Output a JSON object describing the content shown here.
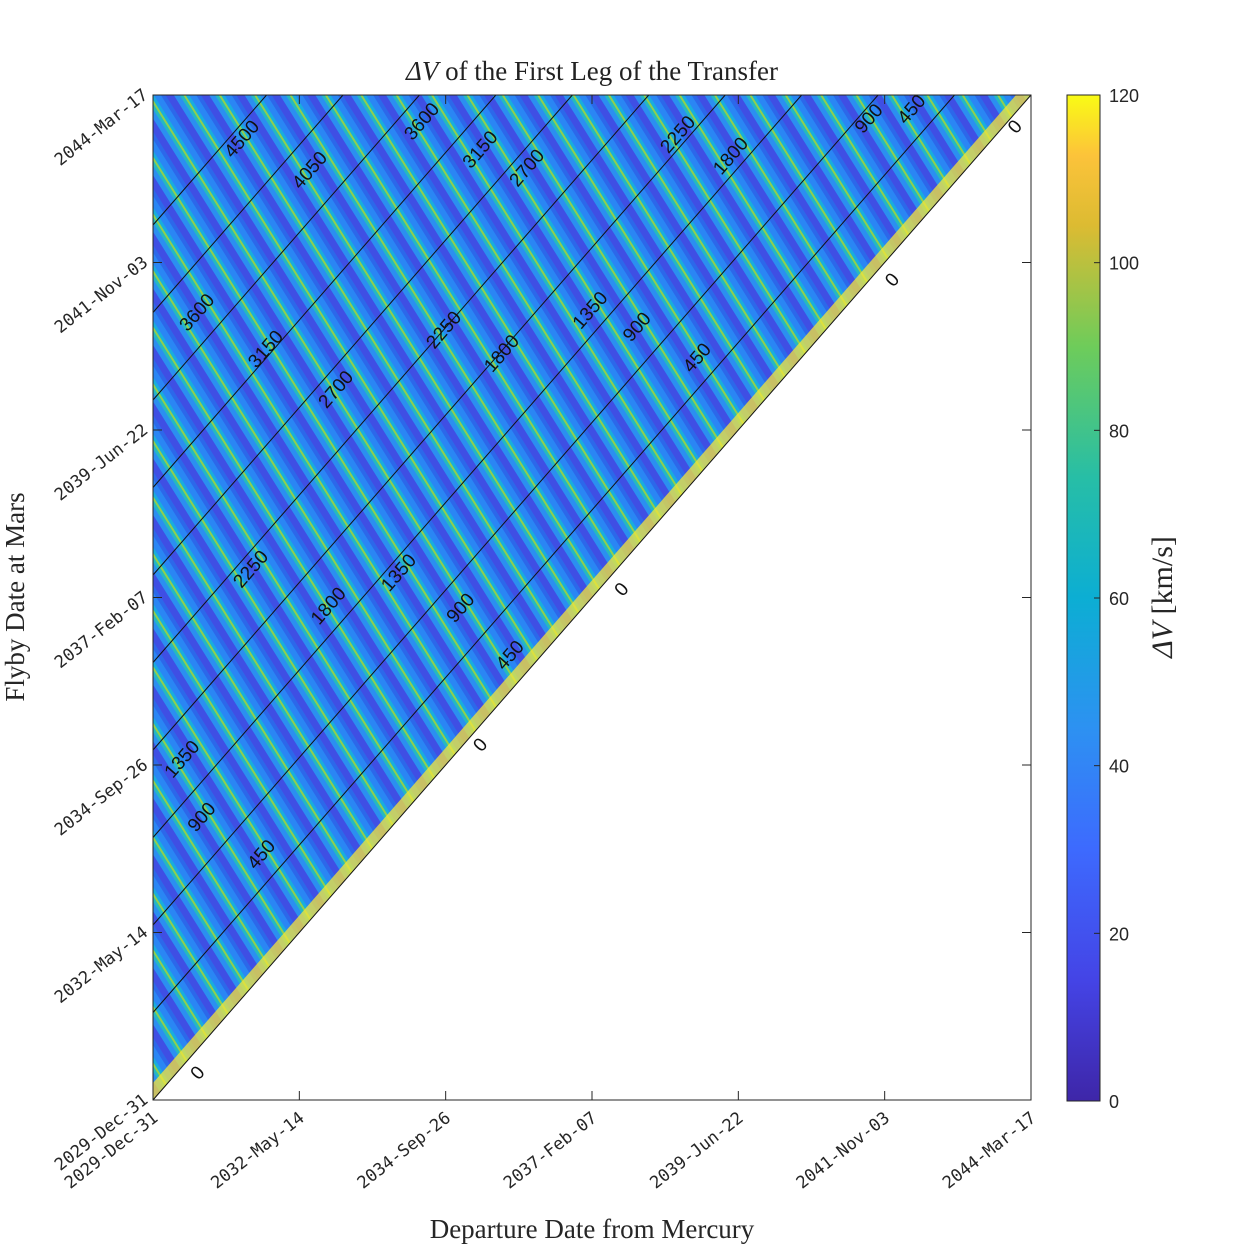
{
  "chart_data": {
    "type": "heatmap",
    "title_symbol": "ΔV",
    "title_rest": " of the First Leg of the Transfer",
    "xlabel": "Departure Date from Mercury",
    "ylabel": "Flyby Date at Mars",
    "x_ticks": [
      "2029-Dec-31",
      "2032-May-14",
      "2034-Sep-26",
      "2037-Feb-07",
      "2039-Jun-22",
      "2041-Nov-03",
      "2044-Mar-17"
    ],
    "y_ticks": [
      "2029-Dec-31",
      "2032-May-14",
      "2034-Sep-26",
      "2037-Feb-07",
      "2039-Jun-22",
      "2041-Nov-03",
      "2044-Mar-17"
    ],
    "xlim": [
      "2029-Dec-31",
      "2044-Mar-17"
    ],
    "ylim": [
      "2029-Dec-31",
      "2044-Mar-17"
    ],
    "colorbar": {
      "label_symbol": "ΔV",
      "label_unit": "[km/s]",
      "limits": [
        0,
        120
      ],
      "ticks": [
        "0",
        "20",
        "40",
        "60",
        "80",
        "100",
        "120"
      ],
      "colormap": "parula"
    },
    "region": "flyby date later than departure date (upper-left triangle); lower-right blank",
    "contour_levels": [
      0,
      450,
      900,
      1350,
      1800,
      2250,
      2700,
      3150,
      3600,
      4050,
      4500
    ],
    "contour_labels": [
      {
        "text": "0",
        "x": "2030-Sep-17",
        "y": "2030-May-23"
      },
      {
        "text": "0",
        "x": "2035-Apr-15",
        "y": "2035-Jan-11"
      },
      {
        "text": "0",
        "x": "2037-Jul-28",
        "y": "2037-Mar-24"
      },
      {
        "text": "0",
        "x": "2041-Dec-14",
        "y": "2041-Aug-08"
      },
      {
        "text": "0",
        "x": "2043-Dec-09",
        "y": "2043-Oct-08"
      },
      {
        "text": "450",
        "x": "2031-Sep-28",
        "y": "2033-Jun-24"
      },
      {
        "text": "900",
        "x": "2030-Oct-11",
        "y": "2034-Jan-03"
      },
      {
        "text": "1350",
        "x": "2030-Jun-17",
        "y": "2034-Oct-29"
      },
      {
        "text": "450",
        "x": "2035-Oct-07",
        "y": "2036-Apr-18"
      },
      {
        "text": "900",
        "x": "2034-Dec-19",
        "y": "2036-Dec-18"
      },
      {
        "text": "1350",
        "x": "2033-Dec-18",
        "y": "2037-Jun-18"
      },
      {
        "text": "1800",
        "x": "2032-Oct-29",
        "y": "2036-Dec-28"
      },
      {
        "text": "2250",
        "x": "2031-Jul-28",
        "y": "2037-Jul-07"
      },
      {
        "text": "450",
        "x": "2038-Oct-17",
        "y": "2040-Jul-02"
      },
      {
        "text": "900",
        "x": "2037-Oct-27",
        "y": "2040-Dec-08"
      },
      {
        "text": "1350",
        "x": "2037-Jan-23",
        "y": "2041-Mar-04"
      },
      {
        "text": "1800",
        "x": "2035-Aug-19",
        "y": "2040-Jul-24"
      },
      {
        "text": "2250",
        "x": "2034-Sep-11",
        "y": "2040-Nov-23"
      },
      {
        "text": "2700",
        "x": "2032-Dec-12",
        "y": "2040-Jan-21"
      },
      {
        "text": "3150",
        "x": "2031-Oct-24",
        "y": "2040-Aug-16"
      },
      {
        "text": "3600",
        "x": "2030-Sep-13",
        "y": "2041-Feb-21"
      },
      {
        "text": "450",
        "x": "2042-Apr-07",
        "y": "2044-Jan-06"
      },
      {
        "text": "900",
        "x": "2041-Jul-28",
        "y": "2043-Nov-19"
      },
      {
        "text": "1800",
        "x": "2039-May-04",
        "y": "2043-May-10"
      },
      {
        "text": "2250",
        "x": "2038-Jun-25",
        "y": "2043-Aug-29"
      },
      {
        "text": "2700",
        "x": "2036-Jan-15",
        "y": "2043-Mar-09"
      },
      {
        "text": "3150",
        "x": "2035-Apr-14",
        "y": "2043-Jun-12"
      },
      {
        "text": "3600",
        "x": "2034-May-04",
        "y": "2043-Nov-05"
      },
      {
        "text": "4050",
        "x": "2032-Jul-10",
        "y": "2043-Feb-26"
      },
      {
        "text": "4500",
        "x": "2031-Jun-05",
        "y": "2043-Aug-06"
      }
    ]
  }
}
